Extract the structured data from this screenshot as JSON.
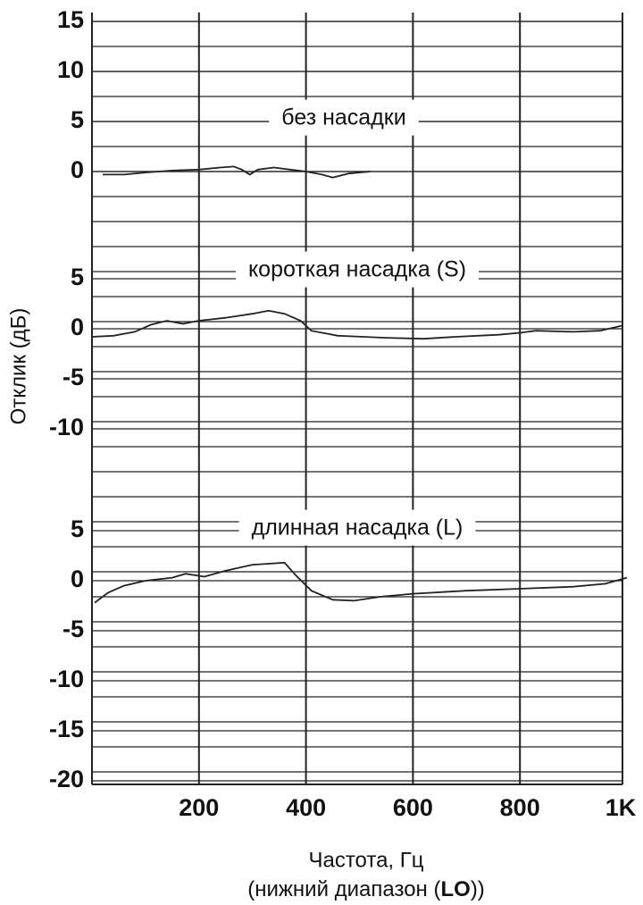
{
  "chart_data": [
    {
      "type": "line",
      "title": "без насадки",
      "ylim": [
        0,
        15
      ],
      "yticks": [
        0,
        5,
        10,
        15
      ],
      "x": [
        20,
        60,
        100,
        150,
        200,
        240,
        265,
        280,
        295,
        310,
        340,
        370,
        400,
        430,
        450,
        480,
        520
      ],
      "series": [
        {
          "color": "#222222",
          "values": [
            -0.3,
            -0.3,
            -0.1,
            0.1,
            0.2,
            0.4,
            0.5,
            0.2,
            -0.3,
            0.2,
            0.4,
            0.2,
            0,
            -0.3,
            -0.6,
            -0.2,
            0
          ]
        }
      ]
    },
    {
      "type": "line",
      "title": "короткая насадка (S)",
      "ylabel": "Отклик (дБ)",
      "ylim": [
        -10,
        5
      ],
      "yticks": [
        -10,
        -5,
        0,
        5
      ],
      "x": [
        0,
        40,
        80,
        110,
        140,
        170,
        200,
        250,
        300,
        330,
        360,
        390,
        410,
        460,
        550,
        620,
        680,
        760,
        800,
        830,
        900,
        950,
        990
      ],
      "series": [
        {
          "color": "#222222",
          "values": [
            -0.8,
            -0.7,
            -0.3,
            0.4,
            0.8,
            0.5,
            0.8,
            1.1,
            1.5,
            1.8,
            1.5,
            0.8,
            -0.2,
            -0.7,
            -0.9,
            -1.0,
            -0.8,
            -0.6,
            -0.4,
            -0.2,
            -0.3,
            -0.2,
            0.3
          ]
        }
      ]
    },
    {
      "type": "line",
      "title": "длинная насадка (L)",
      "ylim": [
        -20,
        5
      ],
      "yticks": [
        -20,
        -15,
        -10,
        -5,
        0,
        5
      ],
      "xlabel": "Частота, Гц",
      "xsublabel": [
        "(нижний диапазон (",
        "LO",
        "))"
      ],
      "xlim": [
        0,
        1000
      ],
      "xticks": [
        200,
        400,
        600,
        800,
        {
          "value": 1000,
          "label": "1K"
        }
      ],
      "x": [
        5,
        30,
        60,
        100,
        150,
        175,
        210,
        250,
        300,
        330,
        360,
        380,
        410,
        450,
        490,
        540,
        600,
        700,
        800,
        900,
        960,
        1000
      ],
      "series": [
        {
          "color": "#222222",
          "values": [
            -2.2,
            -1.2,
            -0.5,
            0,
            0.3,
            0.7,
            0.4,
            1.0,
            1.6,
            1.7,
            1.8,
            0.6,
            -1.0,
            -1.9,
            -2.0,
            -1.6,
            -1.3,
            -1.0,
            -0.8,
            -0.6,
            -0.3,
            0.3
          ]
        }
      ]
    }
  ]
}
